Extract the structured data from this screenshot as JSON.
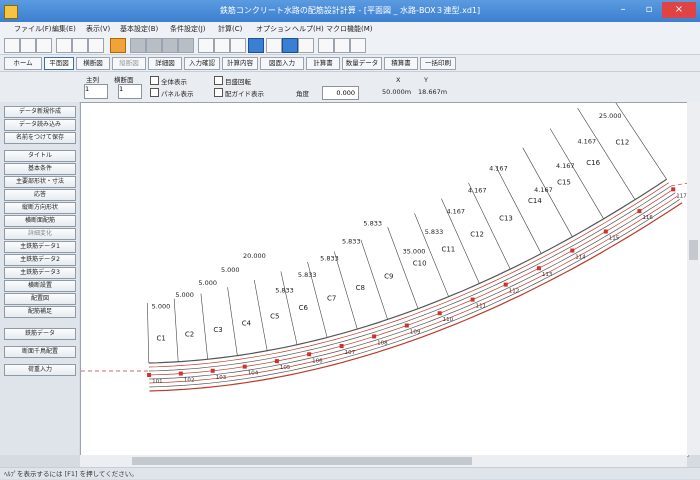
{
  "window": {
    "title": "鉄筋コンクリート水路の配筋設計計算 - [平面図 _ 水路-BOX３連型.xd1]"
  },
  "menu": [
    "ファイル(F)",
    "編集(E)",
    "表示(V)",
    "基本設定(B)",
    "条件設定(J)",
    "計算(C)",
    "オプション",
    "ヘルプ(H)",
    "マクロ機能(M)"
  ],
  "tabs": [
    {
      "label": "ホーム",
      "state": "normal"
    },
    {
      "label": "平面図",
      "state": "active"
    },
    {
      "label": "横断図",
      "state": "normal"
    },
    {
      "label": "縦断図",
      "state": "disabled"
    },
    {
      "label": "詳細図",
      "state": "normal"
    },
    {
      "label": "入力確認",
      "state": "normal"
    },
    {
      "label": "計算内容",
      "state": "normal"
    },
    {
      "label": "図面入力",
      "state": "normal"
    },
    {
      "label": "計算書",
      "state": "normal"
    },
    {
      "label": "数量データ",
      "state": "normal"
    },
    {
      "label": "積算書",
      "state": "normal"
    },
    {
      "label": "一括印刷",
      "state": "normal"
    }
  ],
  "controls": {
    "main_label": "主列",
    "main_value": "1",
    "side_label": "横断面",
    "side_value": "1",
    "checkboxes": [
      "全体表示",
      "目盛回転",
      "パネル表示",
      "配ガイド表示"
    ],
    "angle_label": "角度",
    "angle_value": "0.000",
    "x_label": "X",
    "x_value": "50.000m",
    "y_label": "Y",
    "y_value": "18.667m"
  },
  "sidebar": [
    {
      "label": "データ新規作成",
      "dim": false
    },
    {
      "label": "データ読み込み",
      "dim": false
    },
    {
      "label": "名前をつけて保存",
      "dim": false
    },
    {
      "label": "タイトル",
      "dim": false
    },
    {
      "label": "基本条件",
      "dim": false
    },
    {
      "label": "主要部形状・寸法",
      "dim": false
    },
    {
      "label": "応答",
      "dim": false
    },
    {
      "label": "縦断方向形状",
      "dim": false
    },
    {
      "label": "横断面配筋",
      "dim": false
    },
    {
      "label": "詳細変化",
      "dim": true
    },
    {
      "label": "主鉄筋データ1",
      "dim": false
    },
    {
      "label": "主鉄筋データ2",
      "dim": false
    },
    {
      "label": "主鉄筋データ3",
      "dim": false
    },
    {
      "label": "横断設置",
      "dim": false
    },
    {
      "label": "配置図",
      "dim": false
    },
    {
      "label": "配筋補足",
      "dim": false
    },
    {
      "label": "鉄筋データ",
      "dim": false
    },
    {
      "label": "断面千鳥配置",
      "dim": false
    },
    {
      "label": "荷重入力",
      "dim": false
    }
  ],
  "drawing": {
    "block_labels": [
      "C1",
      "C2",
      "C3",
      "C4",
      "C5",
      "C6",
      "C7",
      "C8",
      "C9",
      "C10",
      "C11",
      "C12",
      "C13",
      "C14",
      "C15",
      "C16",
      "C12"
    ],
    "dimensions": [
      {
        "text": "5.000"
      },
      {
        "text": "5.000"
      },
      {
        "text": "5.000"
      },
      {
        "text": "5.000"
      },
      {
        "text": "20.000"
      },
      {
        "text": "5.833"
      },
      {
        "text": "5.833"
      },
      {
        "text": "5.833"
      },
      {
        "text": "5.833"
      },
      {
        "text": "5.833"
      },
      {
        "text": "35.000"
      },
      {
        "text": "5.833"
      },
      {
        "text": "4.167"
      },
      {
        "text": "4.167"
      },
      {
        "text": "4.167"
      },
      {
        "text": "4.167"
      },
      {
        "text": "4.167"
      },
      {
        "text": "4.167"
      },
      {
        "text": "25.000"
      }
    ],
    "markers": [
      "101",
      "102",
      "103",
      "104",
      "105",
      "106",
      "107",
      "108",
      "109",
      "110",
      "111",
      "112",
      "113",
      "114",
      "115",
      "116",
      "117"
    ]
  },
  "status": {
    "text": "ﾍﾙﾌﾟを表示するには [F1] を押してください。"
  }
}
